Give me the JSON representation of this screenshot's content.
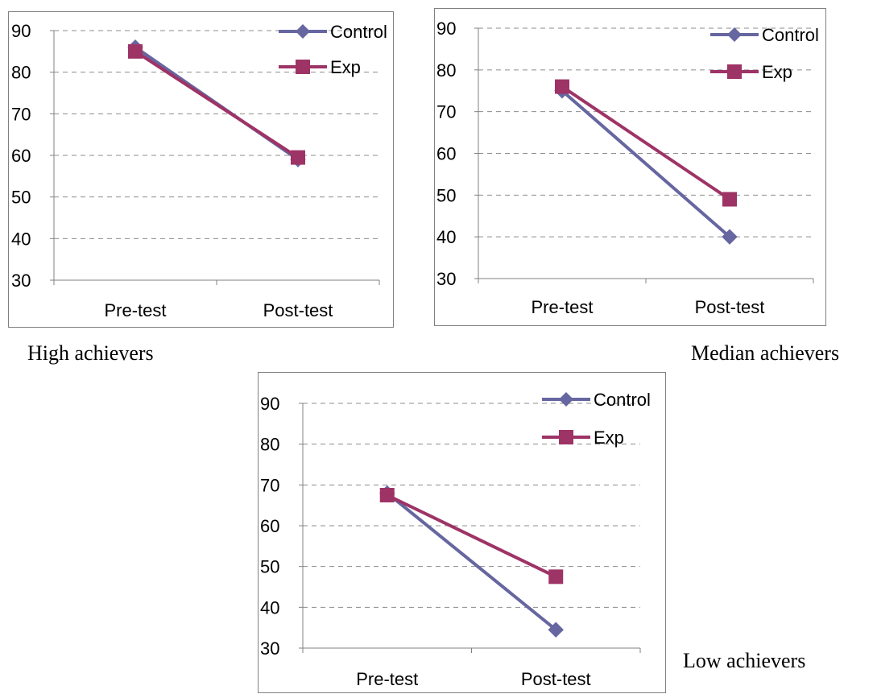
{
  "captions": [
    "High achievers",
    "Median achievers",
    "Low achievers"
  ],
  "colors": {
    "control": "#6666a0",
    "exp": "#9e3366",
    "grid": "#8c8c8c"
  },
  "chart_data": [
    {
      "type": "line",
      "categories": [
        "Pre-test",
        "Post-test"
      ],
      "series": [
        {
          "name": "Control",
          "values": [
            86,
            59
          ],
          "marker": "diamond"
        },
        {
          "name": "Exp",
          "values": [
            85,
            59.5
          ],
          "marker": "square"
        }
      ],
      "ylim": [
        30,
        90
      ],
      "yticks": [
        "30",
        "40",
        "50",
        "60",
        "70",
        "80",
        "90"
      ],
      "grid": true,
      "legend": "top-right"
    },
    {
      "type": "line",
      "categories": [
        "Pre-test",
        "Post-test"
      ],
      "series": [
        {
          "name": "Control",
          "values": [
            75,
            40
          ],
          "marker": "diamond"
        },
        {
          "name": "Exp",
          "values": [
            76,
            49
          ],
          "marker": "square"
        }
      ],
      "ylim": [
        30,
        90
      ],
      "yticks": [
        "30",
        "40",
        "50",
        "60",
        "70",
        "80",
        "90"
      ],
      "grid": true,
      "legend": "top-right"
    },
    {
      "type": "line",
      "categories": [
        "Pre-test",
        "Post-test"
      ],
      "series": [
        {
          "name": "Control",
          "values": [
            68,
            34.5
          ],
          "marker": "diamond"
        },
        {
          "name": "Exp",
          "values": [
            67.5,
            47.5
          ],
          "marker": "square"
        }
      ],
      "ylim": [
        30,
        90
      ],
      "yticks": [
        "30",
        "40",
        "50",
        "60",
        "70",
        "80",
        "90"
      ],
      "grid": true,
      "legend": "top-right"
    }
  ]
}
